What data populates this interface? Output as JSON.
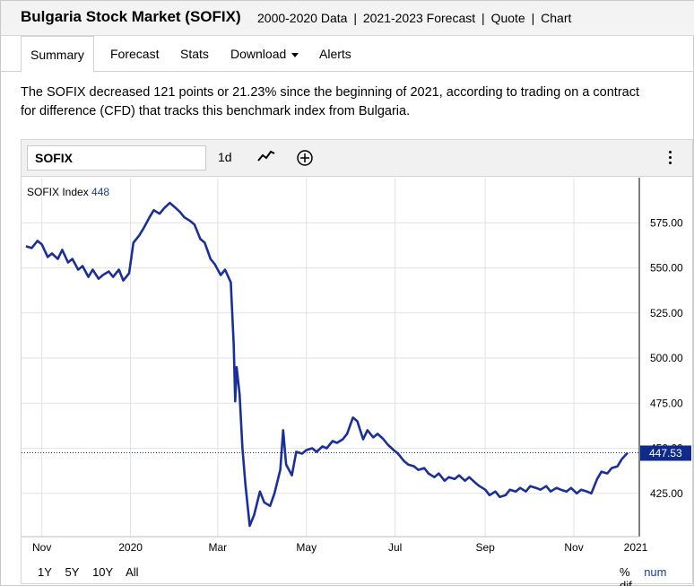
{
  "header": {
    "title": "Bulgaria Stock Market (SOFIX)",
    "links": [
      "2000-2020 Data",
      "2021-2023 Forecast",
      "Quote",
      "Chart"
    ],
    "separator": "|"
  },
  "tabs": [
    {
      "label": "Summary"
    },
    {
      "label": "Forecast"
    },
    {
      "label": "Stats"
    },
    {
      "label": "Download"
    },
    {
      "label": "Alerts"
    }
  ],
  "description": {
    "line1": "The SOFIX decreased 121 points or 21.23% since the beginning of 2021, according to trading on a contract",
    "line2": "for difference (CFD) that tracks this benchmark index from Bulgaria."
  },
  "toolbar": {
    "symbol": "SOFIX",
    "interval": "1d"
  },
  "legend": {
    "name": "SOFIX Index",
    "value": "448"
  },
  "range_buttons": [
    "1Y",
    "5Y",
    "10Y",
    "All"
  ],
  "mode_buttons": [
    "%",
    "num",
    "dif"
  ],
  "colors": {
    "line": "#1a2f9a",
    "accent": "#1a3c9e",
    "last_price_bg": "#0d2a8c"
  },
  "chart_data": {
    "type": "line",
    "series_name": "SOFIX Index",
    "x_ticks": [
      "Nov",
      "2020",
      "Mar",
      "May",
      "Jul",
      "Sep",
      "Nov",
      "2021"
    ],
    "y_ticks": [
      "575.00",
      "550.00",
      "525.00",
      "500.00",
      "475.00",
      "450.00",
      "425.00"
    ],
    "ylim": [
      401,
      600
    ],
    "last_value_label": "447.53",
    "last_value": 447.53,
    "points": [
      [
        "2019-10-21",
        562
      ],
      [
        "2019-10-25",
        561
      ],
      [
        "2019-10-29",
        565
      ],
      [
        "2019-11-01",
        563
      ],
      [
        "2019-11-05",
        556
      ],
      [
        "2019-11-08",
        558
      ],
      [
        "2019-11-12",
        555
      ],
      [
        "2019-11-15",
        560
      ],
      [
        "2019-11-19",
        553
      ],
      [
        "2019-11-22",
        555
      ],
      [
        "2019-11-26",
        549
      ],
      [
        "2019-11-29",
        551
      ],
      [
        "2019-12-03",
        545
      ],
      [
        "2019-12-06",
        549
      ],
      [
        "2019-12-10",
        544
      ],
      [
        "2019-12-13",
        546
      ],
      [
        "2019-12-17",
        548
      ],
      [
        "2019-12-20",
        545
      ],
      [
        "2019-12-24",
        549
      ],
      [
        "2019-12-27",
        543
      ],
      [
        "2019-12-31",
        547
      ],
      [
        "2020-01-03",
        564
      ],
      [
        "2020-01-07",
        568
      ],
      [
        "2020-01-10",
        572
      ],
      [
        "2020-01-14",
        578
      ],
      [
        "2020-01-17",
        582
      ],
      [
        "2020-01-21",
        580
      ],
      [
        "2020-01-24",
        583
      ],
      [
        "2020-01-28",
        586
      ],
      [
        "2020-01-31",
        584
      ],
      [
        "2020-02-04",
        581
      ],
      [
        "2020-02-07",
        578
      ],
      [
        "2020-02-11",
        576
      ],
      [
        "2020-02-14",
        574
      ],
      [
        "2020-02-18",
        566
      ],
      [
        "2020-02-21",
        564
      ],
      [
        "2020-02-25",
        555
      ],
      [
        "2020-02-28",
        552
      ],
      [
        "2020-03-03",
        546
      ],
      [
        "2020-03-06",
        549
      ],
      [
        "2020-03-10",
        542
      ],
      [
        "2020-03-12",
        507
      ],
      [
        "2020-03-13",
        476
      ],
      [
        "2020-03-14",
        495
      ],
      [
        "2020-03-16",
        480
      ],
      [
        "2020-03-18",
        450
      ],
      [
        "2020-03-20",
        430
      ],
      [
        "2020-03-23",
        407
      ],
      [
        "2020-03-26",
        413
      ],
      [
        "2020-03-30",
        426
      ],
      [
        "2020-04-02",
        420
      ],
      [
        "2020-04-06",
        418
      ],
      [
        "2020-04-09",
        425
      ],
      [
        "2020-04-13",
        438
      ],
      [
        "2020-04-15",
        460
      ],
      [
        "2020-04-17",
        441
      ],
      [
        "2020-04-21",
        435
      ],
      [
        "2020-04-24",
        448
      ],
      [
        "2020-04-28",
        447
      ],
      [
        "2020-05-01",
        449
      ],
      [
        "2020-05-05",
        450
      ],
      [
        "2020-05-08",
        448
      ],
      [
        "2020-05-12",
        451
      ],
      [
        "2020-05-15",
        450
      ],
      [
        "2020-05-19",
        454
      ],
      [
        "2020-05-22",
        453
      ],
      [
        "2020-05-26",
        455
      ],
      [
        "2020-05-29",
        458
      ],
      [
        "2020-06-02",
        467
      ],
      [
        "2020-06-05",
        465
      ],
      [
        "2020-06-09",
        455
      ],
      [
        "2020-06-12",
        460
      ],
      [
        "2020-06-16",
        456
      ],
      [
        "2020-06-19",
        458
      ],
      [
        "2020-06-23",
        455
      ],
      [
        "2020-06-26",
        452
      ],
      [
        "2020-06-30",
        449
      ],
      [
        "2020-07-03",
        447
      ],
      [
        "2020-07-07",
        443
      ],
      [
        "2020-07-10",
        441
      ],
      [
        "2020-07-14",
        440
      ],
      [
        "2020-07-17",
        438
      ],
      [
        "2020-07-21",
        439
      ],
      [
        "2020-07-24",
        436
      ],
      [
        "2020-07-28",
        434
      ],
      [
        "2020-07-31",
        436
      ],
      [
        "2020-08-04",
        432
      ],
      [
        "2020-08-07",
        434
      ],
      [
        "2020-08-11",
        433
      ],
      [
        "2020-08-14",
        435
      ],
      [
        "2020-08-18",
        432
      ],
      [
        "2020-08-21",
        434
      ],
      [
        "2020-08-25",
        431
      ],
      [
        "2020-08-28",
        429
      ],
      [
        "2020-09-01",
        427
      ],
      [
        "2020-09-04",
        424
      ],
      [
        "2020-09-08",
        426
      ],
      [
        "2020-09-11",
        423
      ],
      [
        "2020-09-15",
        424
      ],
      [
        "2020-09-18",
        427
      ],
      [
        "2020-09-22",
        426
      ],
      [
        "2020-09-25",
        428
      ],
      [
        "2020-09-29",
        426
      ],
      [
        "2020-10-02",
        429
      ],
      [
        "2020-10-06",
        428
      ],
      [
        "2020-10-09",
        427
      ],
      [
        "2020-10-13",
        429
      ],
      [
        "2020-10-16",
        426
      ],
      [
        "2020-10-20",
        428
      ],
      [
        "2020-10-23",
        427
      ],
      [
        "2020-10-27",
        426
      ],
      [
        "2020-10-30",
        428
      ],
      [
        "2020-11-03",
        425
      ],
      [
        "2020-11-06",
        427
      ],
      [
        "2020-11-10",
        426
      ],
      [
        "2020-11-13",
        425
      ],
      [
        "2020-11-17",
        433
      ],
      [
        "2020-11-20",
        437
      ],
      [
        "2020-11-24",
        436
      ],
      [
        "2020-11-27",
        439
      ],
      [
        "2020-12-01",
        440
      ],
      [
        "2020-12-04",
        444
      ],
      [
        "2020-12-08",
        447.53
      ]
    ]
  }
}
